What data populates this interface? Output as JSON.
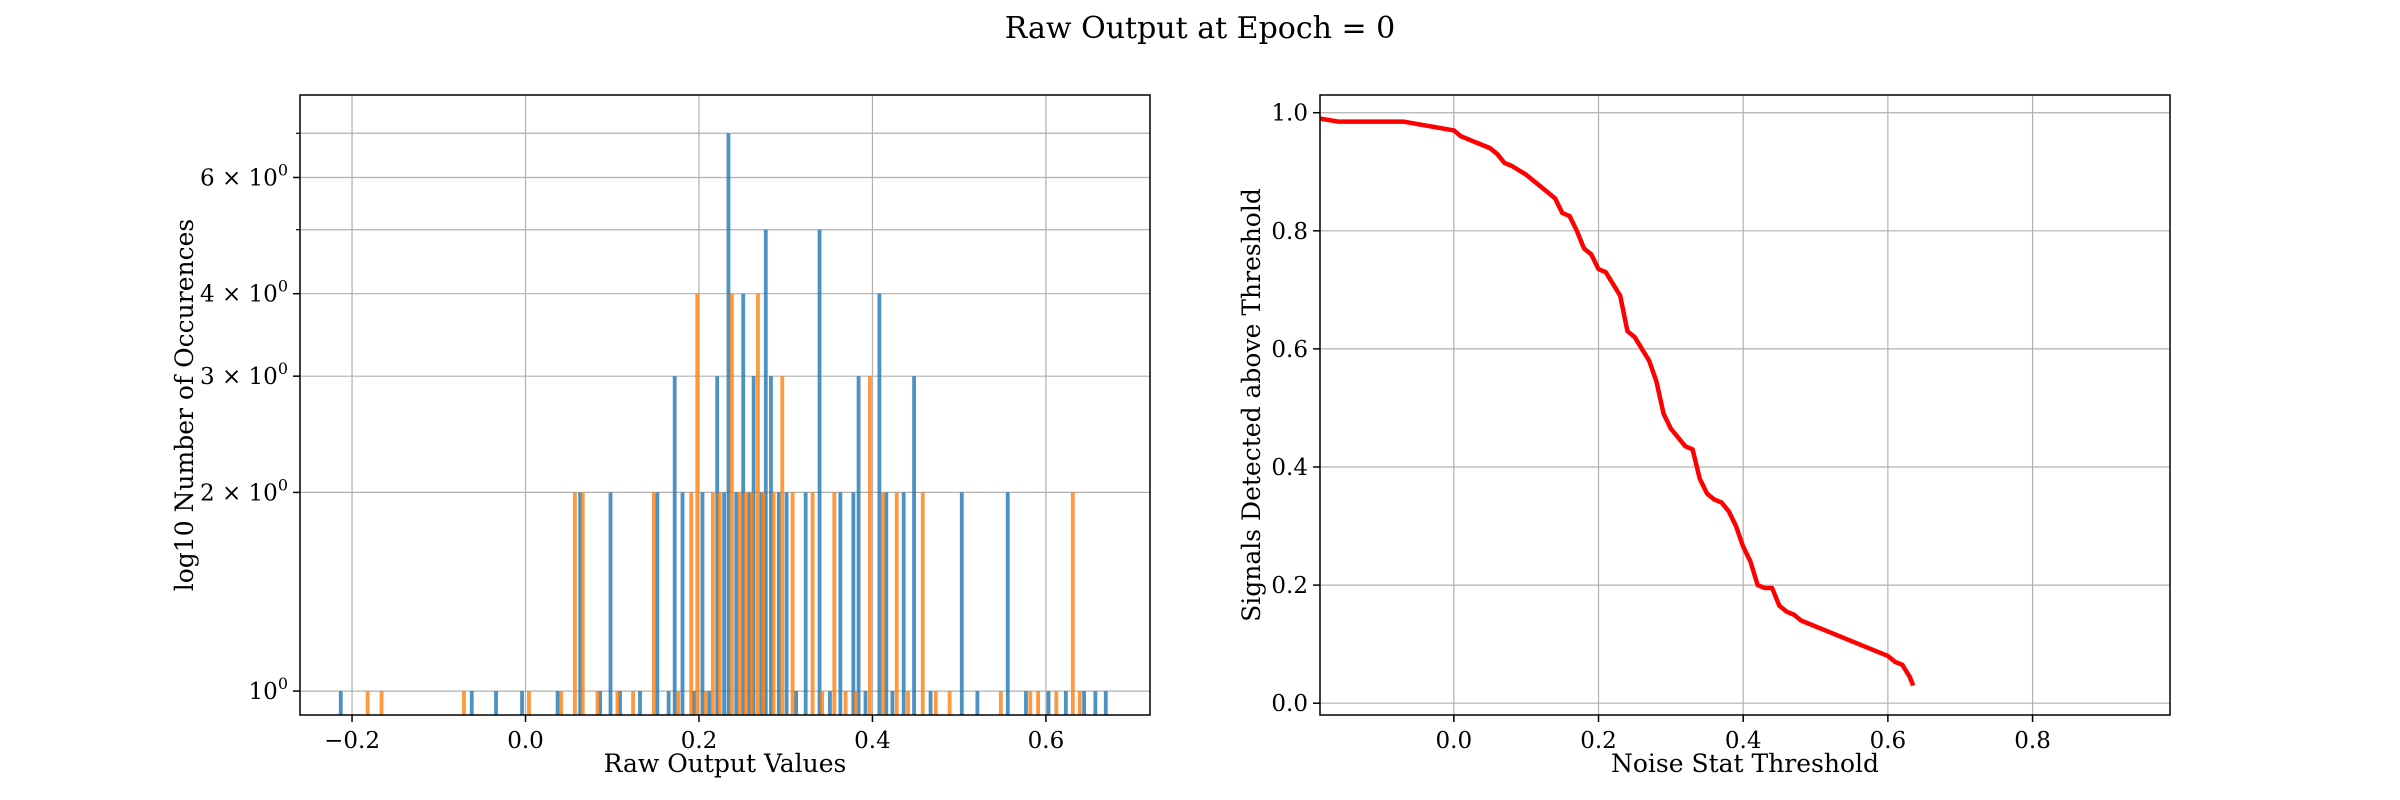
{
  "figure": {
    "suptitle": "Raw Output at Epoch = 0"
  },
  "chart_data": [
    {
      "type": "bar",
      "subtype": "overlaid-histogram",
      "xlabel": "Raw Output Values",
      "ylabel": "log10 Number of Occurences",
      "xlim": [
        -0.26,
        0.72
      ],
      "ylim": [
        0.92,
        8.0
      ],
      "yscale": "log",
      "grid": true,
      "xticks": [
        -0.2,
        0.0,
        0.2,
        0.4,
        0.6
      ],
      "xtick_labels": [
        "−0.2",
        "0.0",
        "0.2",
        "0.4",
        "0.6"
      ],
      "yticks": [
        1,
        2,
        3,
        4,
        6
      ],
      "ytick_labels": [
        {
          "base": "10",
          "exp": "0"
        },
        {
          "base": "2 × 10",
          "exp": "0"
        },
        {
          "base": "3 × 10",
          "exp": "0"
        },
        {
          "base": "4 × 10",
          "exp": "0"
        },
        {
          "base": "6 × 10",
          "exp": "0"
        }
      ],
      "minor_yticks": [
        5,
        7
      ],
      "bin_width": 0.0044,
      "series": [
        {
          "color": "#1f77b4",
          "bars": [
            [
              -0.213,
              1
            ],
            [
              -0.062,
              1
            ],
            [
              -0.034,
              1
            ],
            [
              -0.004,
              1
            ],
            [
              0.037,
              1
            ],
            [
              0.063,
              2
            ],
            [
              0.086,
              1
            ],
            [
              0.098,
              2
            ],
            [
              0.109,
              1
            ],
            [
              0.132,
              1
            ],
            [
              0.152,
              2
            ],
            [
              0.165,
              1
            ],
            [
              0.172,
              3
            ],
            [
              0.181,
              2
            ],
            [
              0.194,
              1
            ],
            [
              0.204,
              2
            ],
            [
              0.212,
              1
            ],
            [
              0.221,
              3
            ],
            [
              0.229,
              2
            ],
            [
              0.234,
              7
            ],
            [
              0.243,
              2
            ],
            [
              0.251,
              4
            ],
            [
              0.258,
              2
            ],
            [
              0.263,
              3
            ],
            [
              0.272,
              2
            ],
            [
              0.277,
              5
            ],
            [
              0.283,
              3
            ],
            [
              0.292,
              2
            ],
            [
              0.301,
              2
            ],
            [
              0.312,
              1
            ],
            [
              0.323,
              2
            ],
            [
              0.339,
              5
            ],
            [
              0.351,
              1
            ],
            [
              0.363,
              2
            ],
            [
              0.378,
              2
            ],
            [
              0.384,
              3
            ],
            [
              0.392,
              1
            ],
            [
              0.408,
              4
            ],
            [
              0.416,
              2
            ],
            [
              0.423,
              1
            ],
            [
              0.436,
              2
            ],
            [
              0.448,
              3
            ],
            [
              0.467,
              1
            ],
            [
              0.503,
              2
            ],
            [
              0.521,
              1
            ],
            [
              0.556,
              2
            ],
            [
              0.577,
              1
            ],
            [
              0.603,
              1
            ],
            [
              0.623,
              1
            ],
            [
              0.644,
              1
            ],
            [
              0.657,
              1
            ],
            [
              0.669,
              1
            ]
          ]
        },
        {
          "color": "#ff7f0e",
          "bars": [
            [
              -0.182,
              1
            ],
            [
              -0.166,
              1
            ],
            [
              -0.071,
              1
            ],
            [
              0.004,
              1
            ],
            [
              0.041,
              1
            ],
            [
              0.057,
              2
            ],
            [
              0.066,
              2
            ],
            [
              0.083,
              1
            ],
            [
              0.106,
              1
            ],
            [
              0.124,
              1
            ],
            [
              0.148,
              2
            ],
            [
              0.176,
              1
            ],
            [
              0.191,
              2
            ],
            [
              0.198,
              4
            ],
            [
              0.208,
              1
            ],
            [
              0.216,
              2
            ],
            [
              0.224,
              2
            ],
            [
              0.238,
              4
            ],
            [
              0.247,
              2
            ],
            [
              0.254,
              2
            ],
            [
              0.261,
              2
            ],
            [
              0.268,
              4
            ],
            [
              0.274,
              2
            ],
            [
              0.286,
              2
            ],
            [
              0.296,
              3
            ],
            [
              0.308,
              2
            ],
            [
              0.331,
              2
            ],
            [
              0.342,
              1
            ],
            [
              0.356,
              2
            ],
            [
              0.369,
              1
            ],
            [
              0.381,
              1
            ],
            [
              0.397,
              3
            ],
            [
              0.412,
              2
            ],
            [
              0.428,
              2
            ],
            [
              0.441,
              1
            ],
            [
              0.458,
              2
            ],
            [
              0.473,
              1
            ],
            [
              0.489,
              1
            ],
            [
              0.548,
              1
            ],
            [
              0.582,
              1
            ],
            [
              0.591,
              1
            ],
            [
              0.612,
              1
            ],
            [
              0.631,
              2
            ],
            [
              0.639,
              1
            ]
          ]
        }
      ]
    },
    {
      "type": "line",
      "xlabel": "Noise Stat Threshold",
      "ylabel": "Signals Detected above Threshold",
      "xlim": [
        -0.185,
        0.99
      ],
      "ylim": [
        -0.02,
        1.03
      ],
      "grid": true,
      "xticks": [
        0.0,
        0.2,
        0.4,
        0.6,
        0.8
      ],
      "xtick_labels": [
        "0.0",
        "0.2",
        "0.4",
        "0.6",
        "0.8"
      ],
      "yticks": [
        0.0,
        0.2,
        0.4,
        0.6,
        0.8,
        1.0
      ],
      "ytick_labels": [
        "0.0",
        "0.2",
        "0.4",
        "0.6",
        "0.8",
        "1.0"
      ],
      "series": [
        {
          "color": "#ff0000",
          "x": [
            -0.185,
            -0.16,
            -0.12,
            -0.07,
            0.0,
            0.01,
            0.03,
            0.05,
            0.06,
            0.07,
            0.08,
            0.1,
            0.12,
            0.14,
            0.15,
            0.16,
            0.17,
            0.18,
            0.19,
            0.2,
            0.21,
            0.22,
            0.23,
            0.24,
            0.25,
            0.26,
            0.27,
            0.28,
            0.29,
            0.3,
            0.31,
            0.32,
            0.33,
            0.34,
            0.35,
            0.36,
            0.37,
            0.38,
            0.39,
            0.4,
            0.41,
            0.42,
            0.43,
            0.44,
            0.45,
            0.46,
            0.47,
            0.48,
            0.49,
            0.52,
            0.55,
            0.58,
            0.6,
            0.61,
            0.62,
            0.63,
            0.635
          ],
          "y": [
            0.99,
            0.985,
            0.985,
            0.985,
            0.97,
            0.96,
            0.95,
            0.94,
            0.93,
            0.915,
            0.91,
            0.895,
            0.875,
            0.855,
            0.83,
            0.825,
            0.8,
            0.77,
            0.76,
            0.735,
            0.73,
            0.71,
            0.69,
            0.63,
            0.62,
            0.6,
            0.58,
            0.545,
            0.49,
            0.465,
            0.45,
            0.435,
            0.43,
            0.38,
            0.355,
            0.345,
            0.34,
            0.325,
            0.3,
            0.265,
            0.24,
            0.2,
            0.195,
            0.195,
            0.165,
            0.155,
            0.15,
            0.14,
            0.135,
            0.12,
            0.105,
            0.09,
            0.08,
            0.07,
            0.065,
            0.045,
            0.03
          ]
        }
      ]
    }
  ]
}
